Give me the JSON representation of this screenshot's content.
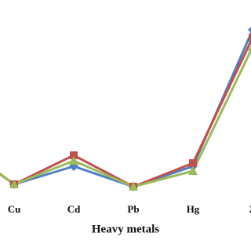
{
  "chart_data": {
    "type": "line",
    "x_label": "Heavy metals",
    "categories": [
      null,
      "Cu",
      "Cd",
      "Pb",
      "Hg",
      "Z"
    ],
    "ylim": [
      0,
      110
    ],
    "series": [
      {
        "color": "#4f7fc4",
        "marker": "diamond",
        "values": [
          35,
          7.5,
          19,
          6,
          19,
          106
        ]
      },
      {
        "color": "#c0504d",
        "marker": "square",
        "values": [
          35,
          7.5,
          26,
          6,
          21,
          101
        ]
      },
      {
        "color": "#9bbb59",
        "marker": "triangle",
        "values": [
          36,
          7.5,
          22.5,
          6,
          16,
          95
        ]
      }
    ]
  }
}
